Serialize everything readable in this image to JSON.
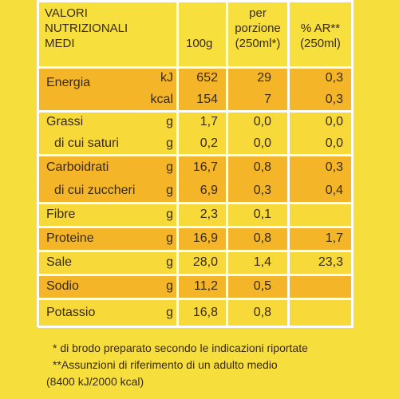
{
  "header": {
    "col_name": [
      "VALORI",
      "NUTRIZIONALI",
      "MEDI"
    ],
    "col_100g": "100g",
    "col_portion": [
      "per",
      "porzione",
      "(250ml*)"
    ],
    "col_ar": [
      "% AR**",
      "(250ml)"
    ]
  },
  "groups": [
    {
      "rows": [
        {
          "label": "Energia",
          "unit": "kJ",
          "per_100g": "652",
          "per_portion": "29",
          "ar": "0,3"
        },
        {
          "unit": "kcal",
          "per_100g": "154",
          "per_portion": "7",
          "ar": "0,3"
        }
      ]
    },
    {
      "rows": [
        {
          "label": "Grassi",
          "unit": "g",
          "per_100g": "1,7",
          "per_portion": "0,0",
          "ar": "0,0"
        },
        {
          "label": "di cui saturi",
          "unit": "g",
          "per_100g": "0,2",
          "per_portion": "0,0",
          "ar": "0,0"
        }
      ]
    },
    {
      "rows": [
        {
          "label": "Carboidrati",
          "unit": "g",
          "per_100g": "16,7",
          "per_portion": "0,8",
          "ar": "0,3"
        },
        {
          "label": "di cui zuccheri",
          "unit": "g",
          "per_100g": "6,9",
          "per_portion": "0,3",
          "ar": "0,4"
        }
      ]
    },
    {
      "rows": [
        {
          "label": "Fibre",
          "unit": "g",
          "per_100g": "2,3",
          "per_portion": "0,1"
        }
      ]
    },
    {
      "rows": [
        {
          "label": "Proteine",
          "unit": "g",
          "per_100g": "16,9",
          "per_portion": "0,8",
          "ar": "1,7"
        }
      ]
    },
    {
      "rows": [
        {
          "label": "Sale",
          "unit": "g",
          "per_100g": "28,0",
          "per_portion": "1,4",
          "ar": "23,3"
        }
      ]
    },
    {
      "rows": [
        {
          "label": "Sodio",
          "unit": "g",
          "per_100g": "11,2",
          "per_portion": "0,5"
        }
      ]
    },
    {
      "rows": [
        {
          "label": "Potassio",
          "unit": "g",
          "per_100g": "16,8",
          "per_portion": "0,8"
        }
      ]
    }
  ],
  "footnotes": [
    "*  di brodo preparato secondo le indicazioni riportate",
    "**Assunzioni di riferimento di un adulto medio",
    "(8400 kJ/2000 kcal)"
  ]
}
